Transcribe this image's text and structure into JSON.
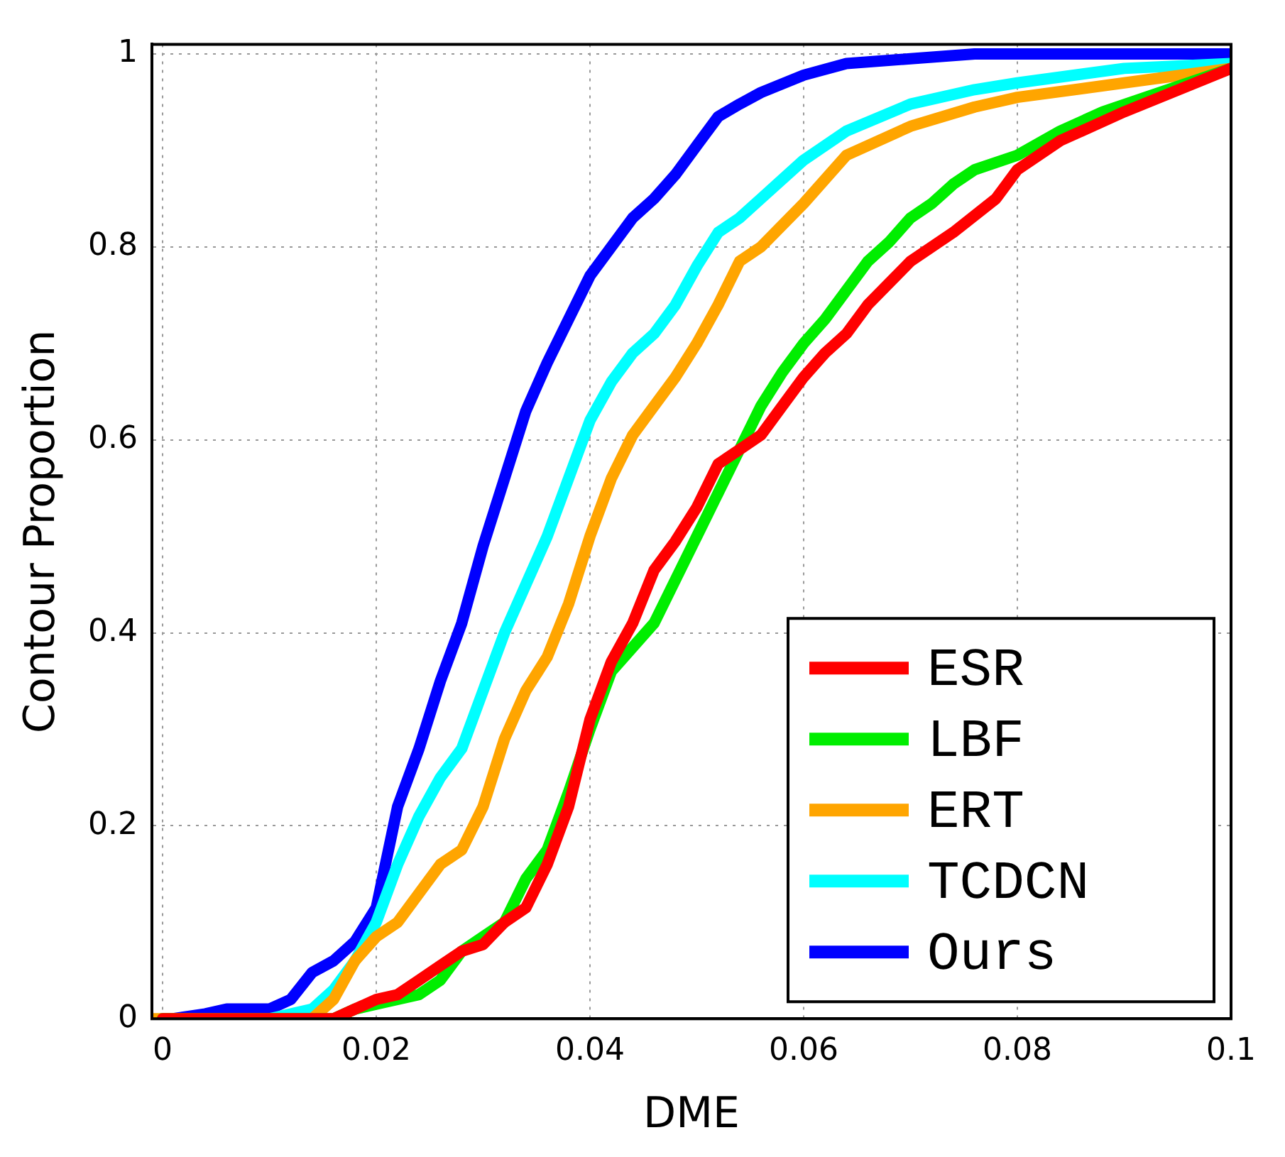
{
  "chart_data": {
    "type": "line",
    "xlabel": "DME",
    "ylabel": "Contour Proportion",
    "xlim": [
      -0.001,
      0.1
    ],
    "ylim": [
      0,
      1.01
    ],
    "xticks": [
      0,
      0.02,
      0.04,
      0.06,
      0.08,
      0.1
    ],
    "yticks": [
      0,
      0.2,
      0.4,
      0.6,
      0.8,
      1
    ],
    "grid": true,
    "legend": "bottom right",
    "line_style": "solid",
    "marker": "none",
    "series": [
      {
        "name": "ESR",
        "color": "#ff0000",
        "x": [
          0,
          0.016,
          0.018,
          0.02,
          0.022,
          0.024,
          0.026,
          0.028,
          0.03,
          0.032,
          0.034,
          0.036,
          0.038,
          0.04,
          0.042,
          0.044,
          0.046,
          0.048,
          0.05,
          0.052,
          0.054,
          0.056,
          0.058,
          0.06,
          0.062,
          0.064,
          0.066,
          0.07,
          0.074,
          0.078,
          0.08,
          0.084,
          0.09,
          0.1
        ],
        "values": [
          0,
          0,
          0.01,
          0.02,
          0.025,
          0.04,
          0.055,
          0.07,
          0.077,
          0.1,
          0.115,
          0.16,
          0.22,
          0.31,
          0.37,
          0.41,
          0.465,
          0.495,
          0.53,
          0.575,
          0.59,
          0.605,
          0.635,
          0.665,
          0.69,
          0.71,
          0.74,
          0.785,
          0.815,
          0.85,
          0.88,
          0.91,
          0.94,
          0.985
        ]
      },
      {
        "name": "LBF",
        "color": "#00ee00",
        "x": [
          0,
          0.016,
          0.018,
          0.02,
          0.024,
          0.026,
          0.028,
          0.03,
          0.032,
          0.034,
          0.036,
          0.038,
          0.04,
          0.042,
          0.044,
          0.046,
          0.048,
          0.05,
          0.052,
          0.054,
          0.056,
          0.058,
          0.06,
          0.062,
          0.064,
          0.066,
          0.068,
          0.07,
          0.072,
          0.074,
          0.076,
          0.08,
          0.084,
          0.088,
          0.092,
          0.1
        ],
        "values": [
          0,
          0,
          0.01,
          0.015,
          0.025,
          0.04,
          0.07,
          0.085,
          0.1,
          0.145,
          0.175,
          0.235,
          0.3,
          0.36,
          0.385,
          0.41,
          0.455,
          0.5,
          0.545,
          0.59,
          0.635,
          0.67,
          0.7,
          0.725,
          0.755,
          0.785,
          0.805,
          0.83,
          0.845,
          0.865,
          0.88,
          0.895,
          0.92,
          0.94,
          0.955,
          0.985
        ]
      },
      {
        "name": "ERT",
        "color": "#ffa500",
        "x": [
          -0.001,
          0.014,
          0.016,
          0.018,
          0.02,
          0.022,
          0.024,
          0.026,
          0.028,
          0.03,
          0.032,
          0.034,
          0.036,
          0.038,
          0.04,
          0.042,
          0.044,
          0.046,
          0.048,
          0.05,
          0.052,
          0.054,
          0.056,
          0.06,
          0.064,
          0.07,
          0.076,
          0.08,
          0.09,
          0.1
        ],
        "values": [
          0,
          0,
          0.02,
          0.06,
          0.085,
          0.1,
          0.13,
          0.16,
          0.175,
          0.22,
          0.29,
          0.34,
          0.375,
          0.43,
          0.5,
          0.56,
          0.605,
          0.635,
          0.665,
          0.7,
          0.74,
          0.785,
          0.8,
          0.845,
          0.895,
          0.925,
          0.945,
          0.955,
          0.97,
          0.985
        ]
      },
      {
        "name": "TCDCN",
        "color": "#00ffff",
        "x": [
          0,
          0.01,
          0.014,
          0.016,
          0.018,
          0.02,
          0.022,
          0.024,
          0.026,
          0.028,
          0.03,
          0.032,
          0.034,
          0.036,
          0.038,
          0.04,
          0.042,
          0.044,
          0.046,
          0.048,
          0.05,
          0.052,
          0.054,
          0.056,
          0.06,
          0.064,
          0.07,
          0.076,
          0.08,
          0.09,
          0.1
        ],
        "values": [
          0,
          0,
          0.01,
          0.03,
          0.06,
          0.1,
          0.16,
          0.21,
          0.25,
          0.28,
          0.34,
          0.4,
          0.45,
          0.5,
          0.56,
          0.62,
          0.66,
          0.69,
          0.71,
          0.74,
          0.78,
          0.815,
          0.83,
          0.85,
          0.89,
          0.92,
          0.948,
          0.963,
          0.97,
          0.985,
          0.99
        ]
      },
      {
        "name": "Ours",
        "color": "#0000ff",
        "x": [
          0.001,
          0.004,
          0.006,
          0.01,
          0.012,
          0.014,
          0.016,
          0.018,
          0.02,
          0.022,
          0.024,
          0.026,
          0.028,
          0.03,
          0.032,
          0.034,
          0.036,
          0.038,
          0.04,
          0.042,
          0.044,
          0.046,
          0.048,
          0.05,
          0.052,
          0.054,
          0.056,
          0.06,
          0.064,
          0.07,
          0.076,
          0.1
        ],
        "values": [
          0,
          0.005,
          0.01,
          0.01,
          0.02,
          0.048,
          0.06,
          0.08,
          0.115,
          0.22,
          0.28,
          0.35,
          0.41,
          0.49,
          0.56,
          0.63,
          0.68,
          0.725,
          0.77,
          0.8,
          0.83,
          0.85,
          0.875,
          0.905,
          0.935,
          0.948,
          0.96,
          0.978,
          0.99,
          0.995,
          1,
          1
        ]
      }
    ]
  }
}
